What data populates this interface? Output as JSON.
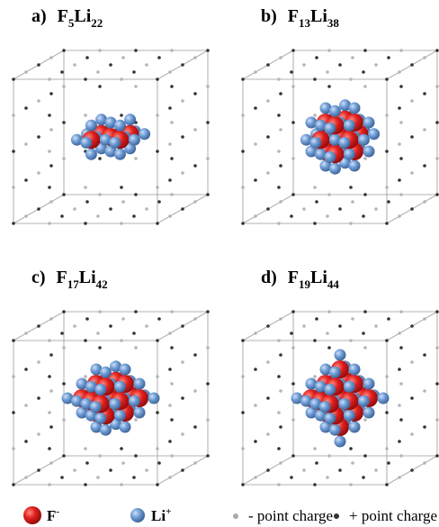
{
  "panels": [
    {
      "label": "a)",
      "formula": [
        {
          "symbol": "F",
          "count": "5"
        },
        {
          "symbol": "Li",
          "count": "22"
        }
      ]
    },
    {
      "label": "b)",
      "formula": [
        {
          "symbol": "F",
          "count": "13"
        },
        {
          "symbol": "Li",
          "count": "38"
        }
      ]
    },
    {
      "label": "c)",
      "formula": [
        {
          "symbol": "F",
          "count": "17"
        },
        {
          "symbol": "Li",
          "count": "42"
        }
      ]
    },
    {
      "label": "d)",
      "formula": [
        {
          "symbol": "F",
          "count": "19"
        },
        {
          "symbol": "Li",
          "count": "44"
        }
      ]
    }
  ],
  "legend": {
    "anion": {
      "symbol": "F",
      "charge": "-"
    },
    "cation": {
      "symbol": "Li",
      "charge": "+"
    },
    "negative_charge": "- point charge",
    "positive_charge": "+ point charge"
  }
}
